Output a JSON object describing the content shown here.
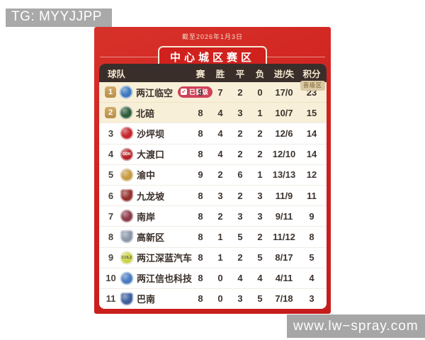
{
  "overlay": {
    "tg_banner": "TG: MYYJJPP",
    "watermark": "www.lw−spray.com"
  },
  "panel": {
    "date_note": "截至2026年1月3日",
    "title": "中心城区赛区",
    "promotion_zone_tag": "晋级区"
  },
  "colors": {
    "panel_red": "#d0211e",
    "header_dark": "#3a2e2b",
    "highlight_cream": "#f8efd8",
    "rank_gold": "#c8a05e",
    "promoted_pill": "#cf4257",
    "zone_tag_bg": "#d9caa4",
    "banner_gray": "#a9a9a9"
  },
  "table": {
    "headers": {
      "team": "球队",
      "played": "赛",
      "win": "胜",
      "draw": "平",
      "loss": "负",
      "goals": "进/失",
      "points": "积分"
    },
    "rows": [
      {
        "rank": "1",
        "team": "两江临空",
        "status_badge": "已晋级",
        "played": "9",
        "win": "7",
        "draw": "2",
        "loss": "0",
        "goals": "17/0",
        "points": "23",
        "zone": "promotion",
        "logo": {
          "shape": "circle",
          "bg": "#3e78c0",
          "text": ""
        }
      },
      {
        "rank": "2",
        "team": "北碚",
        "played": "8",
        "win": "4",
        "draw": "3",
        "loss": "1",
        "goals": "10/7",
        "points": "15",
        "zone": "promotion",
        "logo": {
          "shape": "circle",
          "bg": "#2f5d3a",
          "text": ""
        }
      },
      {
        "rank": "3",
        "team": "沙坪坝",
        "played": "8",
        "win": "4",
        "draw": "2",
        "loss": "2",
        "goals": "12/6",
        "points": "14",
        "zone": "",
        "logo": {
          "shape": "circle",
          "bg": "#c5262c",
          "text": ""
        }
      },
      {
        "rank": "4",
        "team": "大渡口",
        "played": "8",
        "win": "4",
        "draw": "2",
        "loss": "2",
        "goals": "12/10",
        "points": "14",
        "zone": "",
        "logo": {
          "shape": "circle",
          "bg": "#b5252b",
          "text": "DDK"
        }
      },
      {
        "rank": "5",
        "team": "渝中",
        "played": "9",
        "win": "2",
        "draw": "6",
        "loss": "1",
        "goals": "13/13",
        "points": "12",
        "zone": "",
        "logo": {
          "shape": "circle",
          "bg": "#c89a42",
          "text": ""
        }
      },
      {
        "rank": "6",
        "team": "九龙坡",
        "played": "8",
        "win": "3",
        "draw": "2",
        "loss": "3",
        "goals": "11/9",
        "points": "11",
        "zone": "",
        "logo": {
          "shape": "shield",
          "bg": "#93312f",
          "text": ""
        }
      },
      {
        "rank": "7",
        "team": "南岸",
        "played": "8",
        "win": "2",
        "draw": "3",
        "loss": "3",
        "goals": "9/11",
        "points": "9",
        "zone": "",
        "logo": {
          "shape": "circle",
          "bg": "#8c3a4a",
          "text": ""
        }
      },
      {
        "rank": "8",
        "team": "高新区",
        "played": "8",
        "win": "1",
        "draw": "5",
        "loss": "2",
        "goals": "11/12",
        "points": "8",
        "zone": "",
        "logo": {
          "shape": "shield",
          "bg": "#8a97a8",
          "text": ""
        }
      },
      {
        "rank": "9",
        "team": "两江深蓝汽车",
        "played": "8",
        "win": "1",
        "draw": "2",
        "loss": "5",
        "goals": "8/17",
        "points": "5",
        "zone": "",
        "logo": {
          "shape": "circle",
          "bg": "#cbd34a",
          "text": "COL2"
        }
      },
      {
        "rank": "10",
        "team": "两江信也科技",
        "played": "8",
        "win": "0",
        "draw": "4",
        "loss": "4",
        "goals": "4/11",
        "points": "4",
        "zone": "",
        "logo": {
          "shape": "circle",
          "bg": "#4a7bbf",
          "text": ""
        }
      },
      {
        "rank": "11",
        "team": "巴南",
        "played": "8",
        "win": "0",
        "draw": "3",
        "loss": "5",
        "goals": "7/18",
        "points": "3",
        "zone": "",
        "logo": {
          "shape": "shield",
          "bg": "#3d5f9e",
          "text": ""
        }
      }
    ]
  },
  "chart_data": {
    "type": "table",
    "title": "中心城区赛区",
    "subtitle": "截至2026年1月3日",
    "columns": [
      "球队",
      "赛",
      "胜",
      "平",
      "负",
      "进/失",
      "积分"
    ],
    "rows": [
      [
        "两江临空",
        9,
        7,
        2,
        0,
        "17/0",
        23
      ],
      [
        "北碚",
        8,
        4,
        3,
        1,
        "10/7",
        15
      ],
      [
        "沙坪坝",
        8,
        4,
        2,
        2,
        "12/6",
        14
      ],
      [
        "大渡口",
        8,
        4,
        2,
        2,
        "12/10",
        14
      ],
      [
        "渝中",
        9,
        2,
        6,
        1,
        "13/13",
        12
      ],
      [
        "九龙坡",
        8,
        3,
        2,
        3,
        "11/9",
        11
      ],
      [
        "南岸",
        8,
        2,
        3,
        3,
        "9/11",
        9
      ],
      [
        "高新区",
        8,
        1,
        5,
        2,
        "11/12",
        8
      ],
      [
        "两江深蓝汽车",
        8,
        1,
        2,
        5,
        "8/17",
        5
      ],
      [
        "两江信也科技",
        8,
        0,
        4,
        4,
        "4/11",
        4
      ],
      [
        "巴南",
        8,
        0,
        3,
        5,
        "7/18",
        3
      ]
    ],
    "annotations": [
      "已晋级 (两江临空)",
      "晋级区 (ranks 1–2 highlighted)"
    ]
  }
}
